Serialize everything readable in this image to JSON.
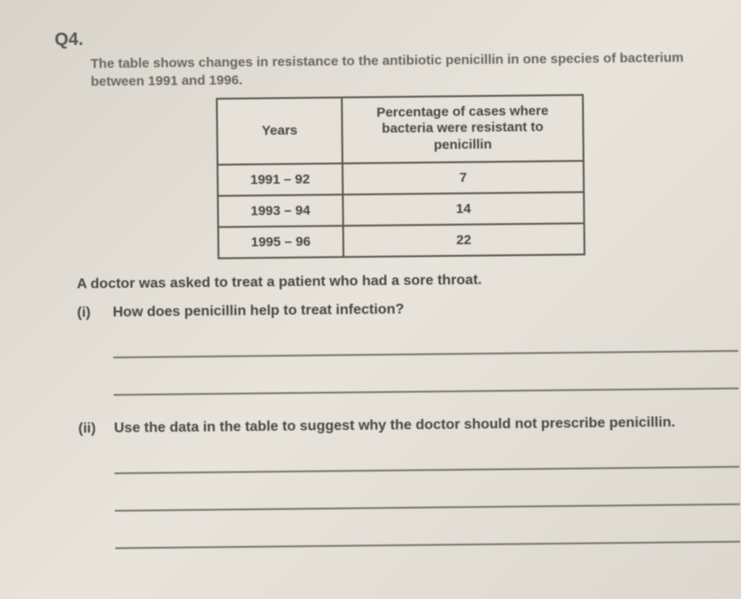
{
  "question_number": "Q4.",
  "intro_line": "The table shows changes in resistance to the antibiotic penicillin in one species of bacterium between 1991 and 1996.",
  "table": {
    "columns": [
      "Years",
      "Percentage of cases where bacteria were resistant to penicillin"
    ],
    "rows": [
      [
        "1991 – 92",
        "7"
      ],
      [
        "1993 – 94",
        "14"
      ],
      [
        "1995 – 96",
        "22"
      ]
    ],
    "border_color": "#5a564e",
    "cell_bg": "#e6e2da",
    "font_size": 15
  },
  "lead_in": "A doctor was asked to treat a patient who had a sore throat.",
  "parts": {
    "i": {
      "label": "(i)",
      "text": "How does penicillin help to treat infection?",
      "answer_lines": 2
    },
    "ii": {
      "label": "(ii)",
      "text_pre": "Use the data in the table to suggest why the doctor should ",
      "text_bold": "not",
      "text_post": " prescribe penicillin.",
      "answer_lines": 3
    }
  },
  "page_bg": "#e0dcd4",
  "text_color": "#4a4640"
}
